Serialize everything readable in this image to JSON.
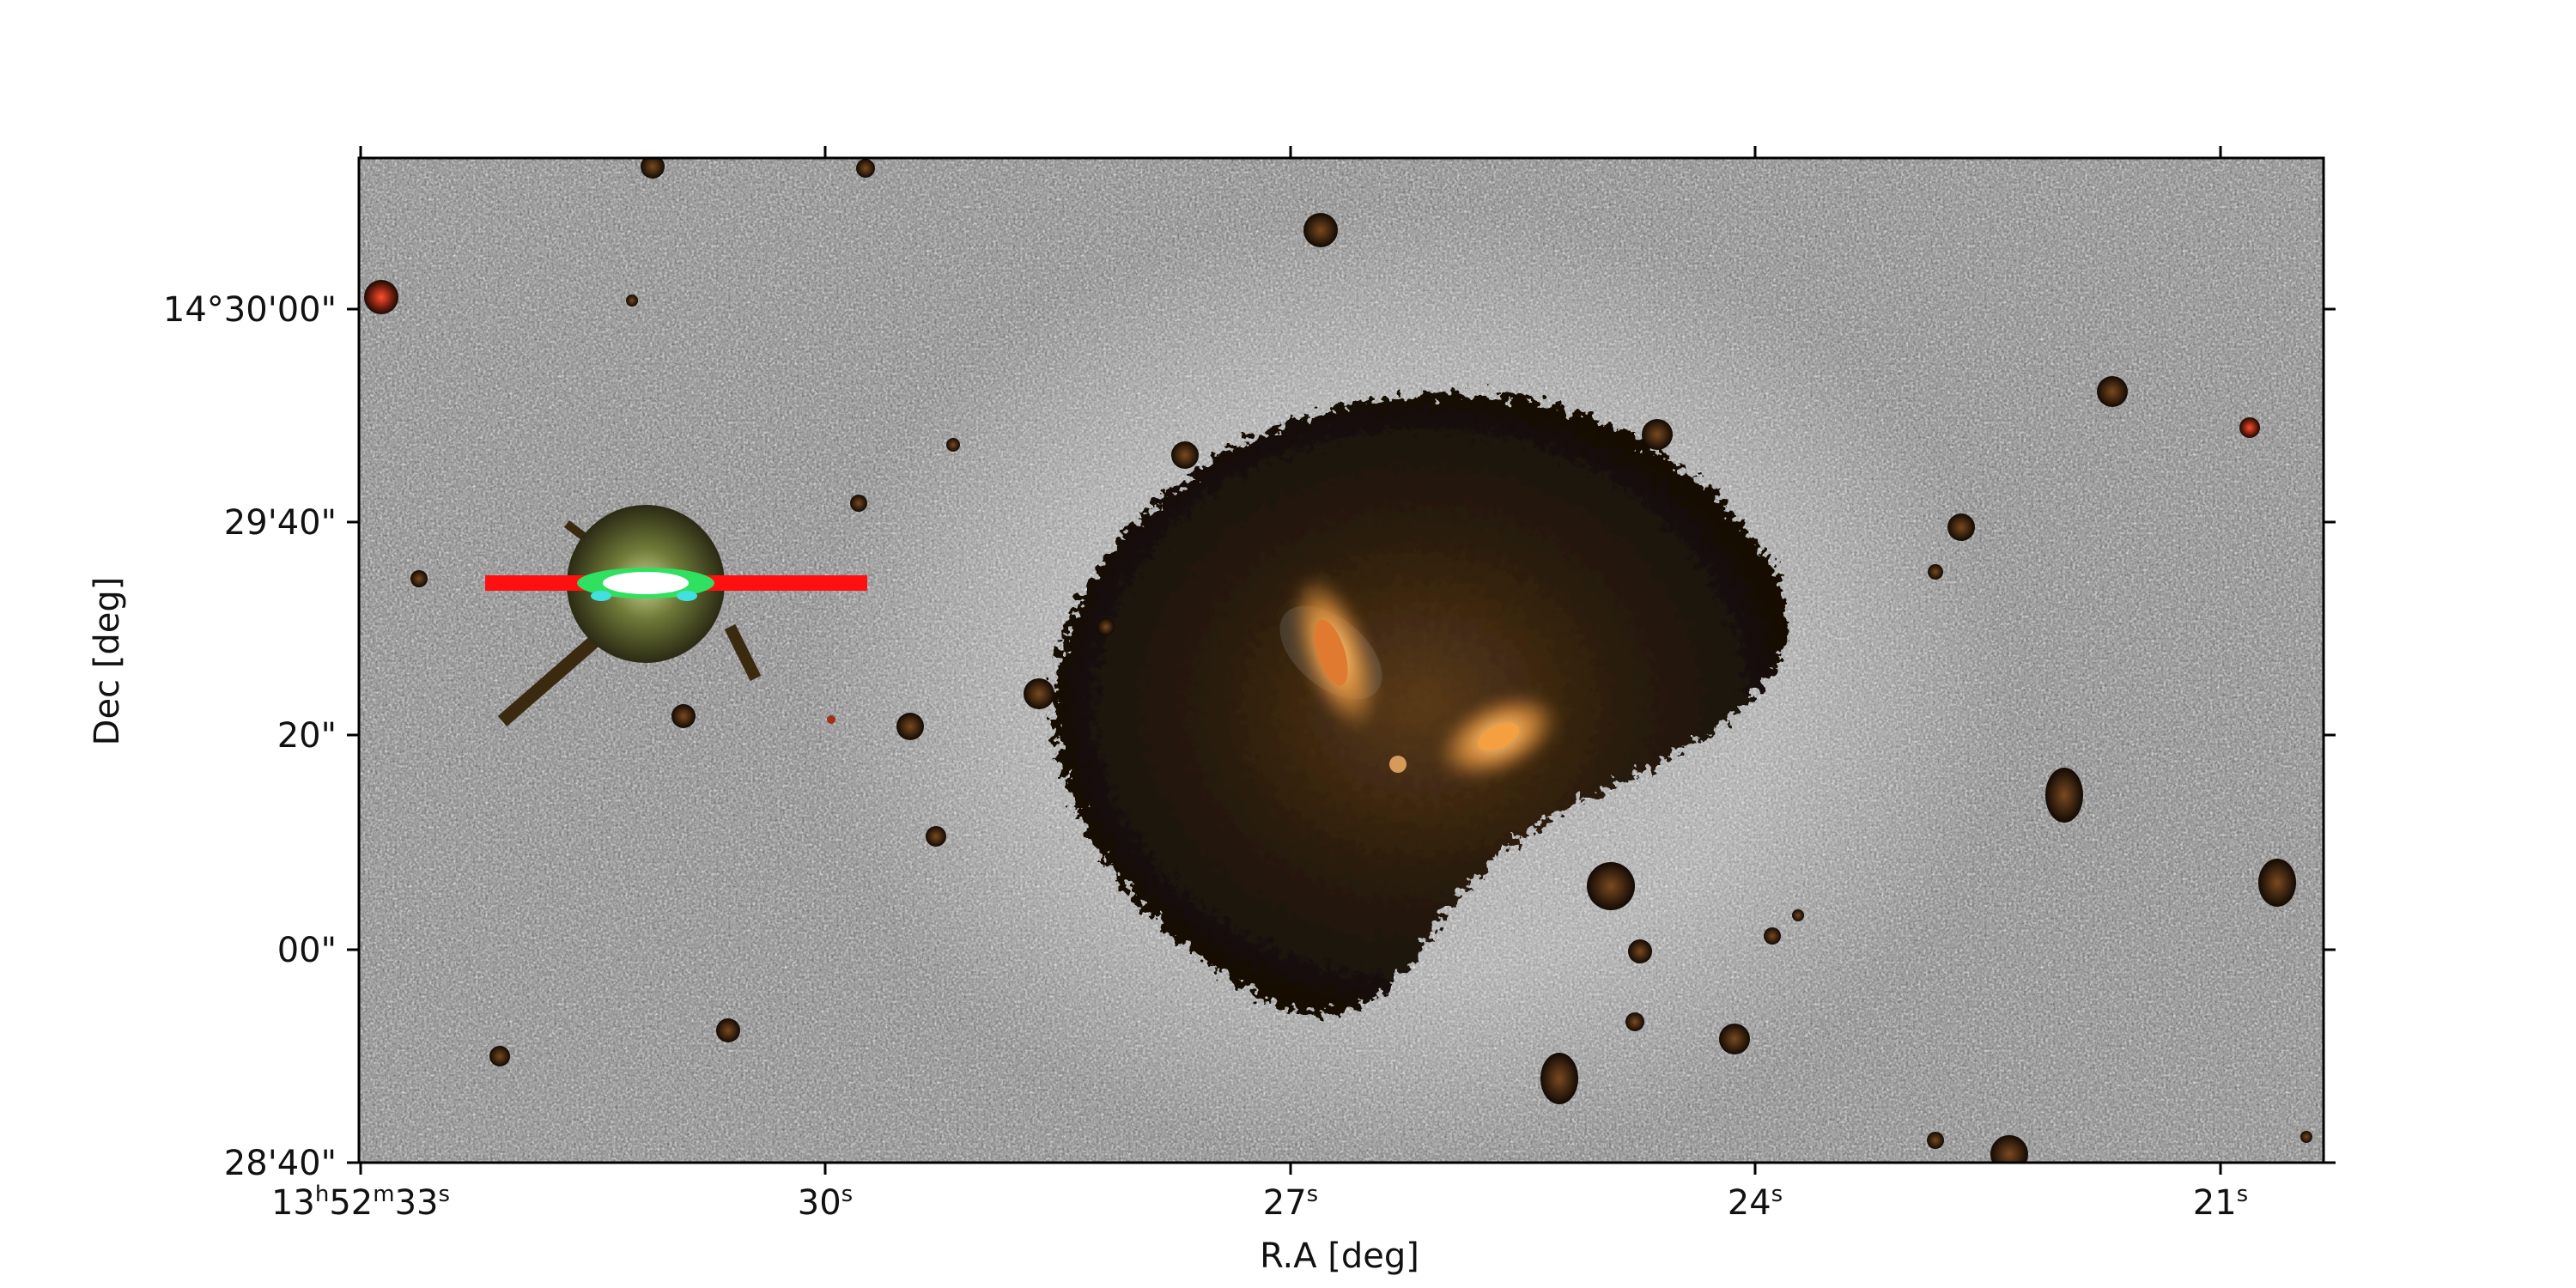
{
  "image": {
    "x_axis_label": "R.A [deg]",
    "y_axis_label": "Dec [deg]",
    "x_ticks": [
      {
        "label": "13h52m33s",
        "main": "13",
        "h": "h",
        "min": "52",
        "m": "m",
        "sec": "33",
        "s": "s"
      },
      {
        "label": "30s",
        "main": "30",
        "s": "s"
      },
      {
        "label": "27s",
        "main": "27",
        "s": "s"
      },
      {
        "label": "24s",
        "main": "24",
        "s": "s"
      },
      {
        "label": "21s",
        "main": "21",
        "s": "s"
      }
    ],
    "y_ticks": [
      {
        "label": "14°30'00\""
      },
      {
        "label": "29'40\""
      },
      {
        "label": "20\""
      },
      {
        "label": "00\""
      },
      {
        "label": "28'40\""
      }
    ],
    "colors": {
      "background_noise_light": "#d8d8d8",
      "background_noise_dark": "#222222",
      "galaxy_halo": "#1a1208",
      "galaxy_core": "#f0a040",
      "star_saturation_red": "#ff1010",
      "star_core_green": "#30e060",
      "star_core_cyan": "#40e0e0"
    }
  }
}
